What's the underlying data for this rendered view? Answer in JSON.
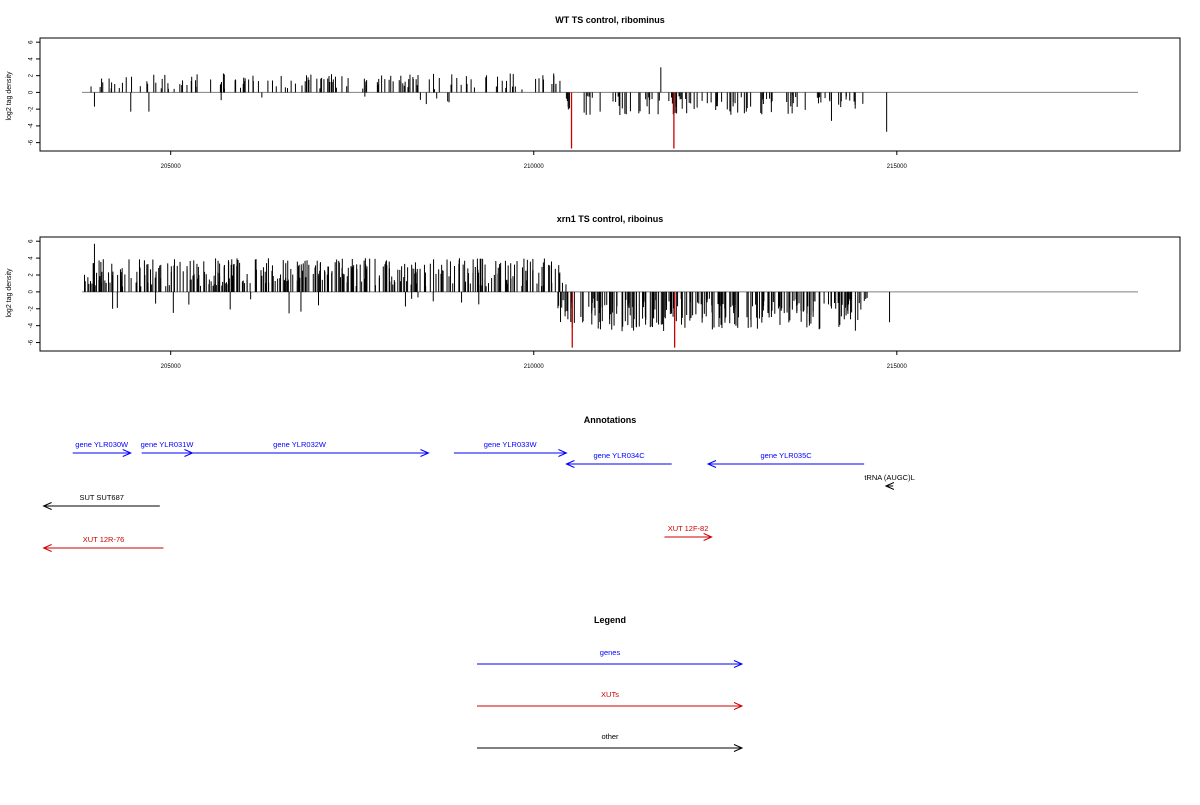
{
  "chart_data": [
    {
      "type": "bar",
      "title": "WT TS control, ribominus",
      "ylabel": "log2 tag density",
      "xlabel": "",
      "xlim": [
        203200,
        218900
      ],
      "ylim": [
        -7,
        6.5
      ],
      "xticks": [
        205000,
        210000,
        215000
      ],
      "yticks": [
        -6,
        -4,
        -2,
        0,
        2,
        4,
        6
      ],
      "baseline_color": "#808080",
      "bar_color": "#000000",
      "highlight_color": "#cc0000",
      "n_bars": 260,
      "seed": 11,
      "positive_range": [
        203900,
        210400
      ],
      "negative_range": [
        210350,
        214550
      ],
      "pos_typical": 1.2,
      "neg_typical": 1.5,
      "extra_bars": [
        {
          "x": 203950,
          "y": -1.7
        },
        {
          "x": 204450,
          "y": -2.3
        },
        {
          "x": 204700,
          "y": -2.3
        },
        {
          "x": 211750,
          "y": 3.0
        },
        {
          "x": 214100,
          "y": -3.4
        },
        {
          "x": 214860,
          "y": -4.7
        }
      ],
      "highlight_bars": [
        {
          "x": 210520,
          "y": -6.7
        },
        {
          "x": 211930,
          "y": -6.7
        }
      ]
    },
    {
      "type": "bar",
      "title": "xrn1 TS control, riboinus",
      "ylabel": "log2 tag density",
      "xlabel": "",
      "xlim": [
        203200,
        218900
      ],
      "ylim": [
        -7,
        6.5
      ],
      "xticks": [
        205000,
        210000,
        215000
      ],
      "yticks": [
        -6,
        -4,
        -2,
        0,
        2,
        4,
        6
      ],
      "baseline_color": "#808080",
      "bar_color": "#000000",
      "highlight_color": "#cc0000",
      "n_bars": 620,
      "seed": 29,
      "positive_range": [
        203800,
        210450
      ],
      "negative_range": [
        210300,
        214650
      ],
      "pos_typical": 2.1,
      "neg_typical": 2.6,
      "extra_bars": [
        {
          "x": 203950,
          "y": 5.7
        },
        {
          "x": 204200,
          "y": -2.0
        },
        {
          "x": 205250,
          "y": -1.5
        },
        {
          "x": 214900,
          "y": -3.6
        }
      ],
      "highlight_bars": [
        {
          "x": 210530,
          "y": -6.6
        },
        {
          "x": 211940,
          "y": -6.6
        }
      ]
    }
  ],
  "annotations": {
    "title": "Annotations",
    "features": [
      {
        "label": "gene YLR030W",
        "start": 203650,
        "end": 204450,
        "strand": "+",
        "color": "#0000ff",
        "row": 0
      },
      {
        "label": "gene YLR031W",
        "start": 204600,
        "end": 205300,
        "strand": "+",
        "color": "#0000ff",
        "row": 0
      },
      {
        "label": "gene YLR032W",
        "start": 205000,
        "end": 208550,
        "strand": "+",
        "color": "#0000ff",
        "row": 0
      },
      {
        "label": "gene YLR033W",
        "start": 208900,
        "end": 210450,
        "strand": "+",
        "color": "#0000ff",
        "row": 0
      },
      {
        "label": "gene YLR034C",
        "start": 210450,
        "end": 211900,
        "strand": "-",
        "color": "#0000ff",
        "row": 1
      },
      {
        "label": "gene YLR035C",
        "start": 212400,
        "end": 214550,
        "strand": "-",
        "color": "#0000ff",
        "row": 1
      },
      {
        "label": "tRNA (AUGC)L",
        "start": 214850,
        "end": 214950,
        "strand": "-",
        "color": "#000000",
        "row": 2
      },
      {
        "label": "SUT SUT687",
        "start": 203250,
        "end": 204850,
        "strand": "-",
        "color": "#000000",
        "row": 3
      },
      {
        "label": "XUT 12F-82",
        "start": 211800,
        "end": 212450,
        "strand": "+",
        "color": "#cc0000",
        "row": 4
      },
      {
        "label": "XUT 12R-76",
        "start": 203250,
        "end": 204900,
        "strand": "-",
        "color": "#cc0000",
        "row": 5
      }
    ]
  },
  "legend": {
    "title": "Legend",
    "items": [
      {
        "label": "genes",
        "color": "#0000ff"
      },
      {
        "label": "XUTs",
        "color": "#cc0000"
      },
      {
        "label": "other",
        "color": "#000000"
      }
    ]
  }
}
